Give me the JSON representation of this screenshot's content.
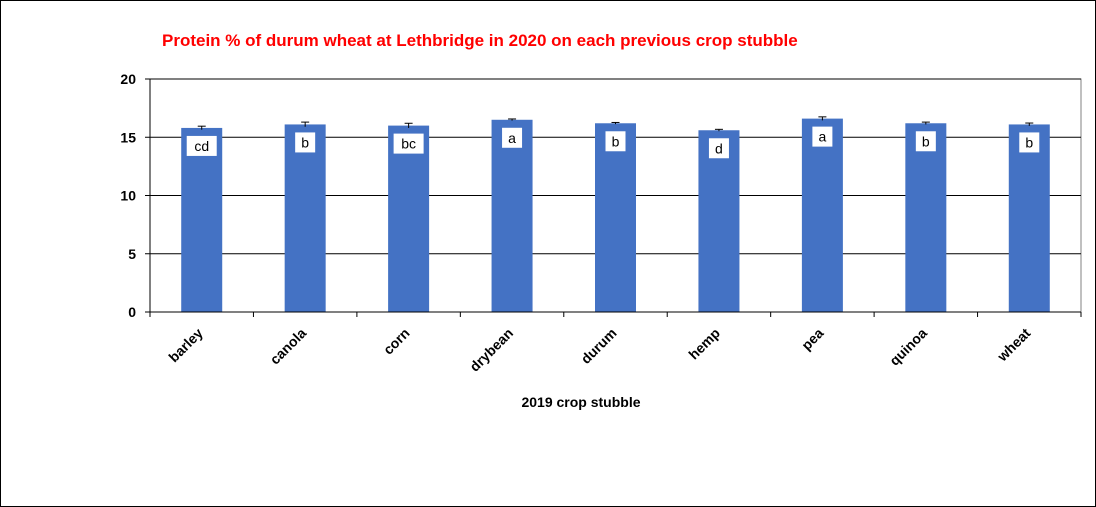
{
  "chart_data": {
    "type": "bar",
    "title": "Protein % of durum wheat at Lethbridge in 2020 on each previous crop stubble",
    "xlabel": "2019 crop stubble",
    "ylabel": "",
    "ylim": [
      0,
      20
    ],
    "yticks": [
      "0",
      "5",
      "10",
      "15",
      "20"
    ],
    "grid": true,
    "categories": [
      "barley",
      "canola",
      "corn",
      "drybean",
      "durum",
      "hemp",
      "pea",
      "quinoa",
      "wheat"
    ],
    "values": [
      15.8,
      16.1,
      16.0,
      16.5,
      16.2,
      15.6,
      16.6,
      16.2,
      16.1
    ],
    "errors": [
      0.15,
      0.2,
      0.2,
      0.07,
      0.07,
      0.08,
      0.15,
      0.1,
      0.12
    ],
    "significance_labels": [
      "cd",
      "b",
      "bc",
      "a",
      "b",
      "d",
      "a",
      "b",
      "b"
    ],
    "colors": {
      "bar": "#4472C4",
      "title": "#FF0000",
      "axis": "#000000",
      "grid": "#000000"
    }
  }
}
